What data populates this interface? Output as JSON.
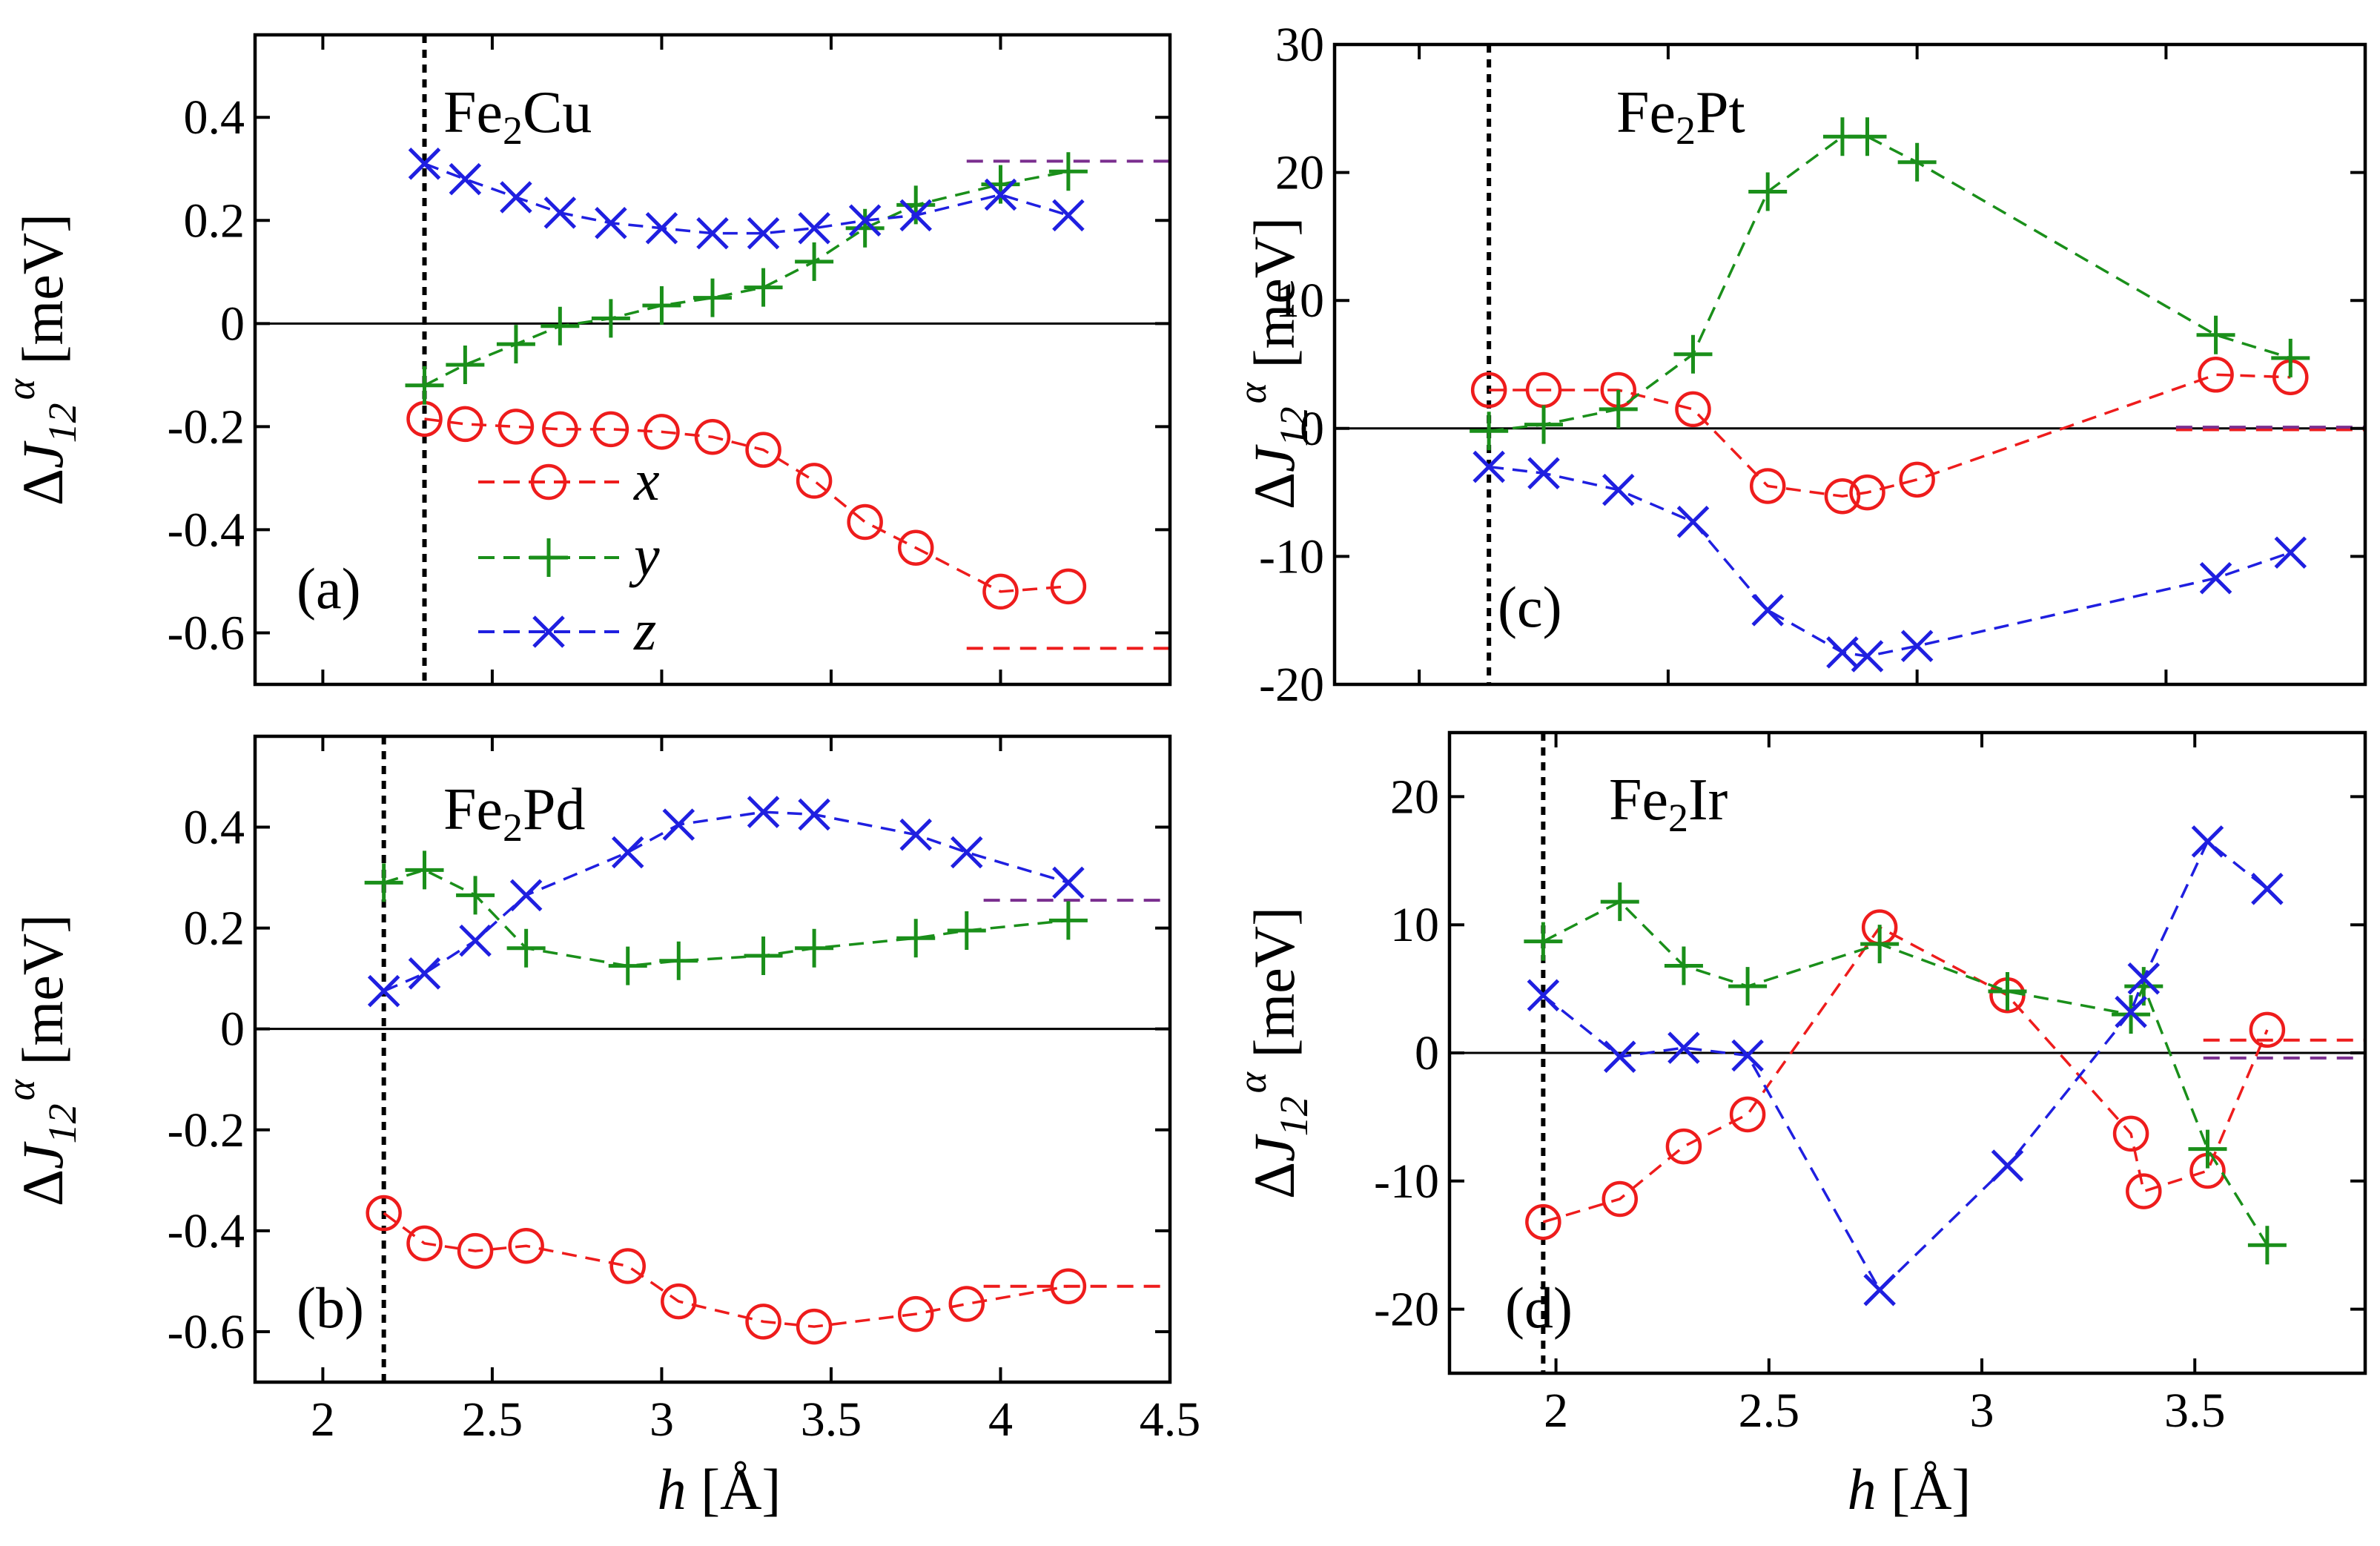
{
  "figure": {
    "x_axis_label": {
      "italic": "h",
      "normal": " [Å]"
    },
    "y_axis_label": {
      "delta": "Δ",
      "J": "J",
      "sub": "12",
      "sup": "α",
      "unit": " [meV]"
    }
  },
  "legend": [
    {
      "label": "x",
      "color": "#ee1c1c",
      "marker": "circle"
    },
    {
      "label": "y",
      "color": "#1a8f1a",
      "marker": "plus"
    },
    {
      "label": "z",
      "color": "#1f1fe0",
      "marker": "cross"
    }
  ],
  "chart_data": [
    {
      "id": "a",
      "type": "line",
      "panel_label": "(a)",
      "title": {
        "base": "Fe",
        "sub": "2",
        "rest": "Cu"
      },
      "xlim": [
        1.8,
        4.5
      ],
      "ylim": [
        -0.7,
        0.56
      ],
      "yticks": [
        {
          "v": 0.4,
          "label": "0.4"
        },
        {
          "v": 0.2,
          "label": "0.2"
        },
        {
          "v": 0,
          "label": "0"
        },
        {
          "v": -0.2,
          "label": "-0.2"
        },
        {
          "v": -0.4,
          "label": "-0.4"
        },
        {
          "v": -0.6,
          "label": "-0.6"
        }
      ],
      "xticks": [],
      "vline": 2.3,
      "series": [
        {
          "name": "x",
          "color": "#ee1c1c",
          "marker": "circle",
          "x": [
            2.3,
            2.42,
            2.57,
            2.7,
            2.85,
            3.0,
            3.15,
            3.3,
            3.45,
            3.6,
            3.75,
            4.0,
            4.2
          ],
          "y": [
            -0.185,
            -0.195,
            -0.2,
            -0.205,
            -0.205,
            -0.21,
            -0.22,
            -0.245,
            -0.305,
            -0.385,
            -0.435,
            -0.52,
            -0.51
          ]
        },
        {
          "name": "y",
          "color": "#1a8f1a",
          "marker": "plus",
          "x": [
            2.3,
            2.42,
            2.57,
            2.7,
            2.85,
            3.0,
            3.15,
            3.3,
            3.45,
            3.6,
            3.75,
            4.0,
            4.2
          ],
          "y": [
            -0.12,
            -0.08,
            -0.04,
            -0.005,
            0.01,
            0.035,
            0.05,
            0.07,
            0.12,
            0.185,
            0.23,
            0.27,
            0.295
          ]
        },
        {
          "name": "z",
          "color": "#1f1fe0",
          "marker": "cross",
          "x": [
            2.3,
            2.42,
            2.57,
            2.7,
            2.85,
            3.0,
            3.15,
            3.3,
            3.45,
            3.6,
            3.75,
            4.0,
            4.2
          ],
          "y": [
            0.31,
            0.28,
            0.245,
            0.215,
            0.195,
            0.185,
            0.175,
            0.175,
            0.185,
            0.2,
            0.21,
            0.25,
            0.21
          ]
        }
      ],
      "ref_lines": [
        {
          "color": "#7a2e8f",
          "y": 0.315,
          "x": [
            3.9,
            4.5
          ]
        },
        {
          "color": "#ee1c1c",
          "y": -0.63,
          "x": [
            3.9,
            4.5
          ]
        }
      ]
    },
    {
      "id": "b",
      "type": "line",
      "panel_label": "(b)",
      "title": {
        "base": "Fe",
        "sub": "2",
        "rest": "Pd"
      },
      "xlim": [
        1.8,
        4.5
      ],
      "ylim": [
        -0.7,
        0.58
      ],
      "yticks": [
        {
          "v": 0.4,
          "label": "0.4"
        },
        {
          "v": 0.2,
          "label": "0.2"
        },
        {
          "v": 0,
          "label": "0"
        },
        {
          "v": -0.2,
          "label": "-0.2"
        },
        {
          "v": -0.4,
          "label": "-0.4"
        },
        {
          "v": -0.6,
          "label": "-0.6"
        }
      ],
      "xticks": [
        {
          "v": 2,
          "label": "2"
        },
        {
          "v": 2.5,
          "label": "2.5"
        },
        {
          "v": 3,
          "label": "3"
        },
        {
          "v": 3.5,
          "label": "3.5"
        },
        {
          "v": 4,
          "label": "4"
        },
        {
          "v": 4.5,
          "label": "4.5"
        }
      ],
      "vline": 2.18,
      "series": [
        {
          "name": "x",
          "color": "#ee1c1c",
          "marker": "circle",
          "x": [
            2.18,
            2.3,
            2.45,
            2.6,
            2.9,
            3.05,
            3.3,
            3.45,
            3.75,
            3.9,
            4.2
          ],
          "y": [
            -0.365,
            -0.425,
            -0.44,
            -0.43,
            -0.47,
            -0.54,
            -0.58,
            -0.59,
            -0.565,
            -0.545,
            -0.51
          ]
        },
        {
          "name": "y",
          "color": "#1a8f1a",
          "marker": "plus",
          "x": [
            2.18,
            2.3,
            2.45,
            2.6,
            2.9,
            3.05,
            3.3,
            3.45,
            3.75,
            3.9,
            4.2
          ],
          "y": [
            0.29,
            0.315,
            0.265,
            0.16,
            0.125,
            0.135,
            0.145,
            0.16,
            0.18,
            0.195,
            0.215
          ]
        },
        {
          "name": "z",
          "color": "#1f1fe0",
          "marker": "cross",
          "x": [
            2.18,
            2.3,
            2.45,
            2.6,
            2.9,
            3.05,
            3.3,
            3.45,
            3.75,
            3.9,
            4.2
          ],
          "y": [
            0.075,
            0.11,
            0.175,
            0.265,
            0.35,
            0.405,
            0.43,
            0.425,
            0.385,
            0.35,
            0.29
          ]
        }
      ],
      "ref_lines": [
        {
          "color": "#7a2e8f",
          "y": 0.255,
          "x": [
            3.95,
            4.5
          ]
        },
        {
          "color": "#ee1c1c",
          "y": -0.51,
          "x": [
            3.95,
            4.5
          ]
        }
      ]
    },
    {
      "id": "c",
      "type": "line",
      "panel_label": "(c)",
      "title": {
        "base": "Fe",
        "sub": "2",
        "rest": "Pt"
      },
      "xlim": [
        1.83,
        3.9
      ],
      "ylim": [
        -20,
        30
      ],
      "yticks": [
        {
          "v": 30,
          "label": "30"
        },
        {
          "v": 20,
          "label": "20"
        },
        {
          "v": 10,
          "label": "10"
        },
        {
          "v": 0,
          "label": "0"
        },
        {
          "v": -10,
          "label": "-10"
        },
        {
          "v": -20,
          "label": "-20"
        }
      ],
      "xticks": [],
      "vline": 2.14,
      "series": [
        {
          "name": "x",
          "color": "#ee1c1c",
          "marker": "circle",
          "x": [
            2.14,
            2.25,
            2.4,
            2.55,
            2.7,
            2.85,
            2.9,
            3.0,
            3.6,
            3.75
          ],
          "y": [
            3.0,
            3.0,
            3.0,
            1.5,
            -4.5,
            -5.3,
            -5.0,
            -4.0,
            4.2,
            4.0
          ]
        },
        {
          "name": "y",
          "color": "#1a8f1a",
          "marker": "plus",
          "x": [
            2.14,
            2.25,
            2.4,
            2.55,
            2.7,
            2.85,
            2.9,
            3.0,
            3.6,
            3.75
          ],
          "y": [
            -0.2,
            0.3,
            1.5,
            5.8,
            18.5,
            22.8,
            22.8,
            20.8,
            7.3,
            5.5
          ]
        },
        {
          "name": "z",
          "color": "#1f1fe0",
          "marker": "cross",
          "x": [
            2.14,
            2.25,
            2.4,
            2.55,
            2.7,
            2.85,
            2.9,
            3.0,
            3.6,
            3.75
          ],
          "y": [
            -3.0,
            -3.5,
            -4.8,
            -7.3,
            -14.2,
            -17.5,
            -17.8,
            -17.0,
            -11.7,
            -9.7
          ]
        }
      ],
      "ref_lines": [
        {
          "color": "#ee1c1c",
          "y": -0.1,
          "x": [
            3.52,
            3.9
          ]
        },
        {
          "color": "#7a2e8f",
          "y": 0.1,
          "x": [
            3.52,
            3.9
          ]
        }
      ]
    },
    {
      "id": "d",
      "type": "line",
      "panel_label": "(d)",
      "title": {
        "base": "Fe",
        "sub": "2",
        "rest": "Ir"
      },
      "xlim": [
        1.75,
        3.9
      ],
      "ylim": [
        -25,
        25
      ],
      "yticks": [
        {
          "v": 20,
          "label": "20"
        },
        {
          "v": 10,
          "label": "10"
        },
        {
          "v": 0,
          "label": "0"
        },
        {
          "v": -10,
          "label": "-10"
        },
        {
          "v": -20,
          "label": "-20"
        }
      ],
      "xticks": [
        {
          "v": 2,
          "label": "2"
        },
        {
          "v": 2.5,
          "label": "2.5"
        },
        {
          "v": 3,
          "label": "3"
        },
        {
          "v": 3.5,
          "label": "3.5"
        }
      ],
      "vline": 1.97,
      "series": [
        {
          "name": "x",
          "color": "#ee1c1c",
          "marker": "circle",
          "x": [
            1.97,
            2.15,
            2.3,
            2.45,
            2.76,
            3.06,
            3.35,
            3.38,
            3.53,
            3.67
          ],
          "y": [
            -13.2,
            -11.4,
            -7.3,
            -4.8,
            9.8,
            4.5,
            -6.3,
            -10.8,
            -9.2,
            1.8
          ]
        },
        {
          "name": "y",
          "color": "#1a8f1a",
          "marker": "plus",
          "x": [
            1.97,
            2.15,
            2.3,
            2.45,
            2.76,
            3.06,
            3.35,
            3.38,
            3.53,
            3.67
          ],
          "y": [
            8.7,
            11.8,
            6.8,
            5.2,
            8.5,
            4.8,
            3.0,
            5.2,
            -7.5,
            -15.0
          ]
        },
        {
          "name": "z",
          "color": "#1f1fe0",
          "marker": "cross",
          "x": [
            1.97,
            2.15,
            2.3,
            2.45,
            2.76,
            3.06,
            3.35,
            3.38,
            3.53,
            3.67
          ],
          "y": [
            4.5,
            -0.3,
            0.4,
            -0.2,
            -18.5,
            -8.8,
            3.2,
            5.8,
            16.5,
            12.8
          ]
        }
      ],
      "ref_lines": [
        {
          "color": "#ee1c1c",
          "y": 1.0,
          "x": [
            3.52,
            3.9
          ]
        },
        {
          "color": "#7a2e8f",
          "y": -0.4,
          "x": [
            3.52,
            3.9
          ]
        }
      ]
    }
  ]
}
